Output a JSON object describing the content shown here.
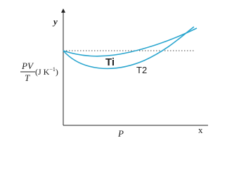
{
  "axes": {
    "y_label": "y",
    "x_label": "x",
    "p_label": "P"
  },
  "quantity": {
    "numerator": "PV",
    "denominator": "T",
    "unit": "(J K",
    "unit_exp": "−1",
    "unit_close": ")"
  },
  "curves": [
    {
      "label": "Ti"
    },
    {
      "label": "T2"
    }
  ]
}
